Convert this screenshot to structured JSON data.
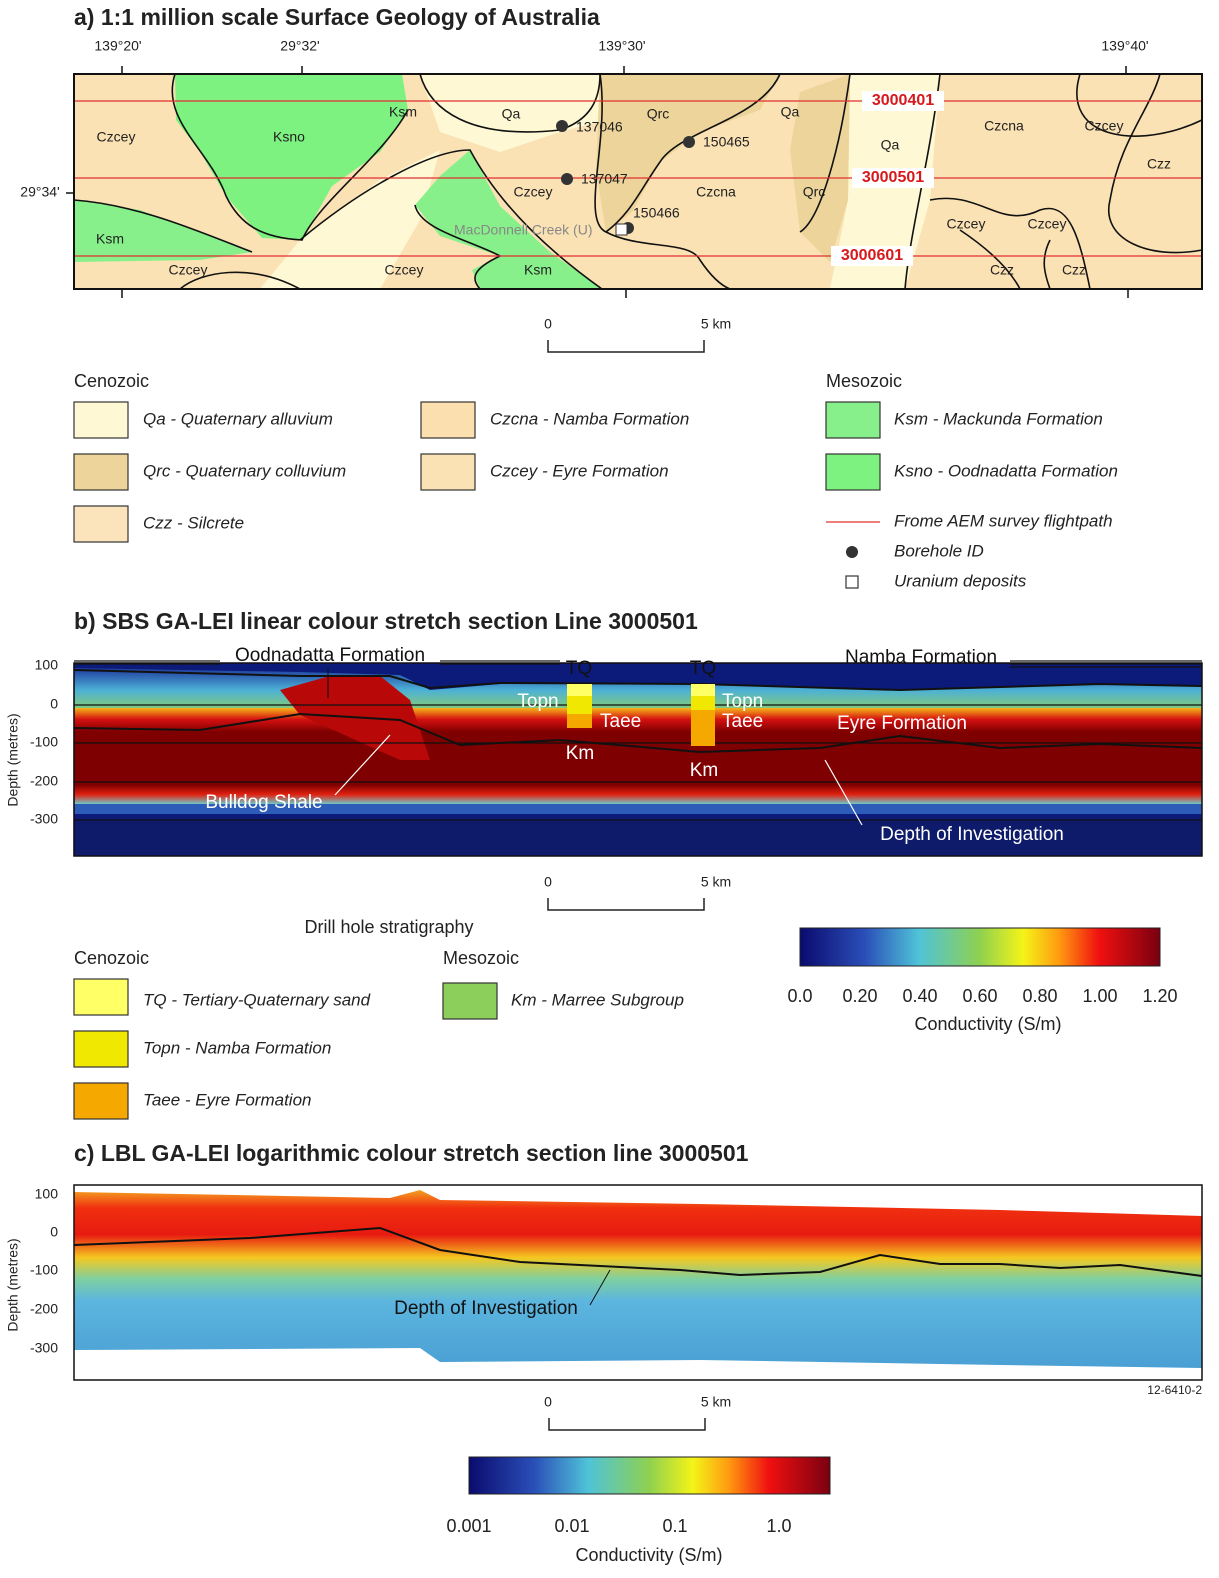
{
  "panel_a": {
    "title": "a) 1:1 million scale Surface Geology of Australia",
    "longitude_labels": [
      "139°20'",
      "29°32'",
      "139°30'",
      "139°40'"
    ],
    "latitude_label": "29°34'",
    "unit_labels": [
      "Ksm",
      "Qa",
      "Qrc",
      "Qa",
      "Czcey",
      "Ksno",
      "Qa",
      "Czcna",
      "Czcey",
      "Czz",
      "Czcey",
      "Czcna",
      "Qrc",
      "Ksm",
      "Czcey",
      "Czcey",
      "Czcey",
      "Czcey",
      "Ksm",
      "Czz",
      "Czz"
    ],
    "flightlines": [
      "3000401",
      "3000501",
      "3000601"
    ],
    "boreholes": [
      "137046",
      "150465",
      "137047",
      "150466"
    ],
    "deposit": "MacDonnell Creek (U)",
    "scale_bar": {
      "start": "0",
      "end": "5 km"
    },
    "legend": {
      "cenozoic": "Cenozoic",
      "mesozoic": "Mesozoic",
      "units": [
        "Qa - Quaternary alluvium",
        "Qrc - Quaternary colluvium",
        "Czz - Silcrete",
        "Czcna - Namba Formation",
        "Czcey - Eyre Formation",
        "Ksm - Mackunda Formation",
        "Ksno - Oodnadatta Formation"
      ],
      "symbols": [
        "Frome AEM survey flightpath",
        "Borehole ID",
        "Uranium deposits"
      ]
    }
  },
  "panel_b": {
    "title": "b) SBS GA-LEI linear colour stretch section Line 3000501",
    "y_label": "Depth (metres)",
    "yticks": [
      "100",
      "0",
      "-100",
      "-200",
      "-300"
    ],
    "annotations": [
      "Oodnadatta Formation",
      "TQ",
      "TQ",
      "Namba Formation",
      "Topn",
      "Taee",
      "Topn",
      "Taee",
      "Eyre Formation",
      "Km",
      "Km",
      "Bulldog Shale",
      "Depth of Investigation"
    ],
    "scale_bar": {
      "start": "0",
      "end": "5 km"
    },
    "legend": {
      "title": "Drill hole stratigraphy",
      "cenozoic": "Cenozoic",
      "mesozoic": "Mesozoic",
      "units": [
        "TQ - Tertiary-Quaternary sand",
        "Topn - Namba Formation",
        "Taee - Eyre Formation",
        "Km - Marree Subgroup"
      ]
    },
    "colorbar": {
      "ticks": [
        "0.0",
        "0.20",
        "0.40",
        "0.60",
        "0.80",
        "1.00",
        "1.20"
      ],
      "label": "Conductivity (S/m)"
    }
  },
  "panel_c": {
    "title": "c) LBL GA-LEI logarithmic colour stretch section line 3000501",
    "y_label": "Depth (metres)",
    "yticks": [
      "100",
      "0",
      "-100",
      "-200",
      "-300"
    ],
    "annotation": "Depth of Investigation",
    "scale_bar": {
      "start": "0",
      "end": "5 km"
    },
    "figure_id": "12-6410-2",
    "colorbar": {
      "ticks": [
        "0.001",
        "0.01",
        "0.1",
        "1.0"
      ],
      "label": "Conductivity (S/m)"
    }
  }
}
